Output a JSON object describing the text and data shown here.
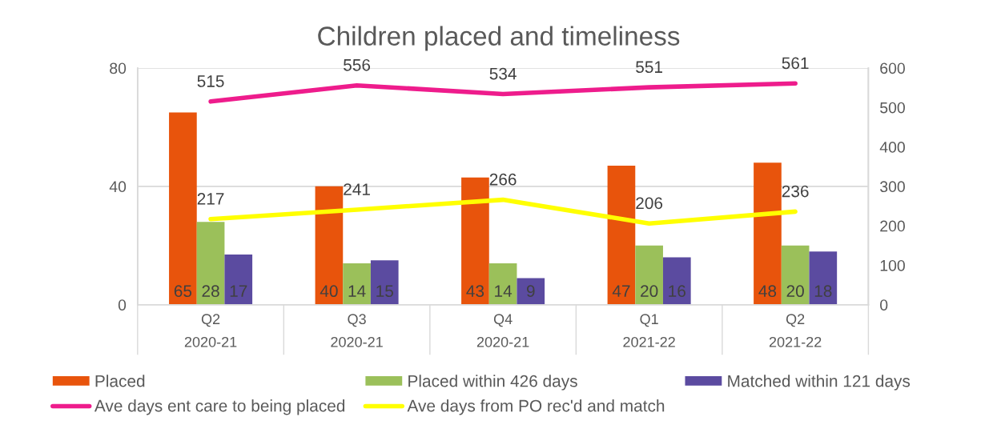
{
  "chart_data": {
    "type": "bar",
    "title": "Children placed and timeliness",
    "categories": [
      "Q2\n2020-21",
      "Q3\n2020-21",
      "Q4\n2020-21",
      "Q1\n2021-22",
      "Q2\n2021-22"
    ],
    "series": [
      {
        "name": "Placed",
        "color": "#e8540c",
        "values": [
          65,
          40,
          43,
          47,
          48
        ]
      },
      {
        "name": "Placed within 426 days",
        "color": "#9bc05a",
        "values": [
          28,
          14,
          14,
          20,
          20
        ]
      },
      {
        "name": "Matched within 121 days",
        "color": "#5b4ba0",
        "values": [
          17,
          15,
          9,
          16,
          18
        ]
      },
      {
        "name": "Ave days ent care to being placed",
        "type": "line",
        "axis": "y2",
        "color": "#ee1c8c",
        "values": [
          515,
          556,
          534,
          551,
          561
        ]
      },
      {
        "name": "Ave days from PO rec'd and match",
        "type": "line",
        "axis": "y2",
        "color": "#ffff00",
        "values": [
          217,
          241,
          266,
          206,
          236
        ]
      }
    ],
    "ylim": [
      0,
      80
    ],
    "yticks": [
      0,
      40,
      80
    ],
    "y2lim": [
      0,
      600
    ],
    "y2ticks": [
      0,
      100,
      200,
      300,
      400,
      500,
      600
    ],
    "grid": "y",
    "legend": "bottom",
    "data_labels": true
  }
}
